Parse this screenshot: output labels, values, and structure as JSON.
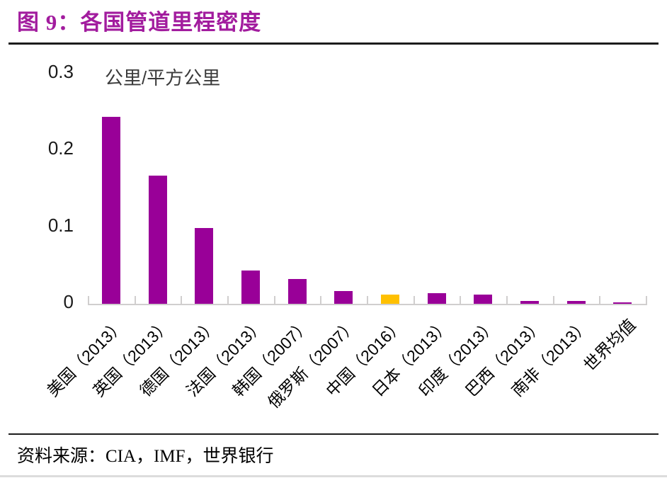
{
  "figure": {
    "title": "图 9：各国管道里程密度"
  },
  "source": {
    "label": "资料来源：CIA，IMF，世界银行"
  },
  "chart_data": {
    "type": "bar",
    "title": "图 9：各国管道里程密度",
    "xlabel": "",
    "ylabel": "公里/平方公里",
    "categories": [
      "美国（2013）",
      "英国（2013）",
      "德国（2013）",
      "法国（2013）",
      "韩国（2007）",
      "俄罗斯（2007）",
      "中国（2016）",
      "日本（2013）",
      "印度（2013）",
      "巴西（2013）",
      "南非（2013）",
      "世界均值"
    ],
    "values": [
      0.244,
      0.167,
      0.099,
      0.043,
      0.032,
      0.017,
      0.012,
      0.014,
      0.012,
      0.004,
      0.004,
      0.0015
    ],
    "ylim": [
      0,
      0.3
    ],
    "yticks": [
      {
        "value": 0,
        "label": "0"
      },
      {
        "value": 0.1,
        "label": "0.1"
      },
      {
        "value": 0.2,
        "label": "0.2"
      },
      {
        "value": 0.3,
        "label": "0.3"
      }
    ],
    "grid": false,
    "legend": "none",
    "highlight_index": 6,
    "highlight_category": "中国（2016）",
    "colors": {
      "bar": "#990098",
      "highlight": "#FFC000",
      "axis": "#D0CECE",
      "title": "#A21C9E"
    }
  }
}
